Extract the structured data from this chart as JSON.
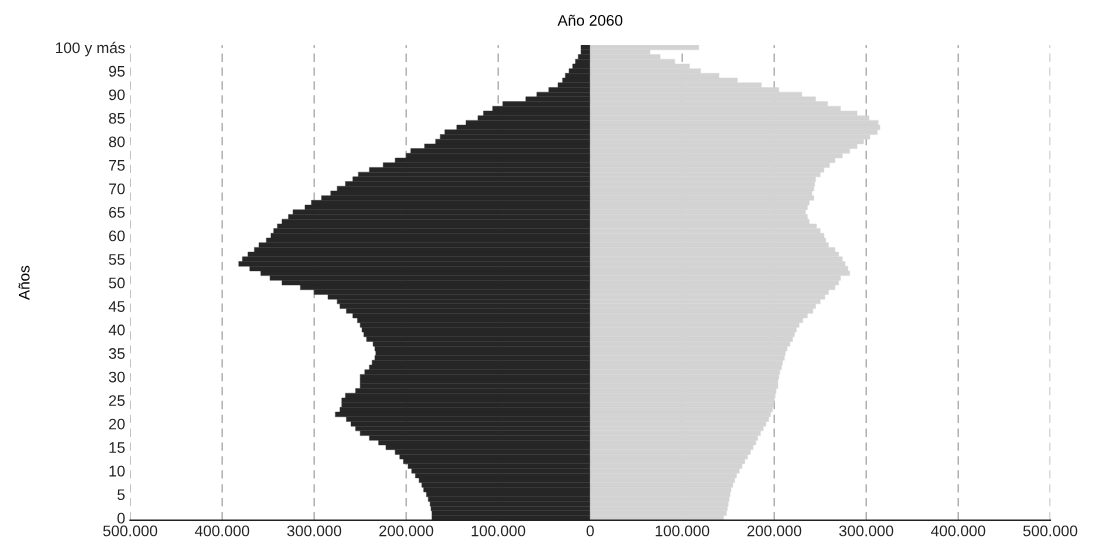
{
  "chart_data": {
    "type": "bar",
    "orientation": "horizontal",
    "title": "Año 2060",
    "ylabel": "Años",
    "categories": [
      "100 y más",
      null,
      null,
      null,
      null,
      "95",
      null,
      null,
      null,
      null,
      "90",
      null,
      null,
      null,
      null,
      "85",
      null,
      null,
      null,
      null,
      "80",
      null,
      null,
      null,
      null,
      "75",
      null,
      null,
      null,
      null,
      "70",
      null,
      null,
      null,
      null,
      "65",
      null,
      null,
      null,
      null,
      "60",
      null,
      null,
      null,
      null,
      "55",
      null,
      null,
      null,
      null,
      "50",
      null,
      null,
      null,
      null,
      "45",
      null,
      null,
      null,
      null,
      "40",
      null,
      null,
      null,
      null,
      "35",
      null,
      null,
      null,
      null,
      "30",
      null,
      null,
      null,
      null,
      "25",
      null,
      null,
      null,
      null,
      "20",
      null,
      null,
      null,
      null,
      "15",
      null,
      null,
      null,
      null,
      "10",
      null,
      null,
      null,
      null,
      "5",
      null,
      null,
      null,
      null,
      "0"
    ],
    "series": [
      {
        "color": "#262626",
        "values": [
          -10000,
          -10000,
          -13000,
          -16000,
          -19000,
          -23000,
          -27000,
          -30000,
          -35000,
          -45000,
          -58000,
          -70000,
          -95000,
          -106000,
          -116000,
          -122000,
          -135000,
          -145000,
          -158000,
          -163000,
          -168000,
          -180000,
          -195000,
          -200000,
          -212000,
          -225000,
          -240000,
          -252000,
          -258000,
          -266000,
          -275000,
          -282000,
          -292000,
          -303000,
          -310000,
          -323000,
          -328000,
          -335000,
          -340000,
          -344000,
          -347000,
          -352000,
          -360000,
          -365000,
          -372000,
          -378000,
          -382000,
          -370000,
          -358000,
          -348000,
          -335000,
          -315000,
          -300000,
          -285000,
          -275000,
          -272000,
          -265000,
          -258000,
          -253000,
          -250000,
          -248000,
          -246000,
          -243000,
          -236000,
          -234000,
          -233000,
          -234000,
          -237000,
          -240000,
          -245000,
          -250000,
          -250000,
          -250000,
          -255000,
          -266000,
          -270000,
          -270000,
          -272000,
          -277000,
          -265000,
          -260000,
          -255000,
          -250000,
          -240000,
          -230000,
          -222000,
          -212000,
          -207000,
          -203000,
          -198000,
          -194000,
          -190000,
          -186000,
          -183000,
          -181000,
          -178000,
          -176000,
          -174000,
          -173000,
          -172000,
          -172000
        ]
      },
      {
        "color": "#d3d3d3",
        "values": [
          118000,
          65000,
          76000,
          92000,
          108000,
          120000,
          140000,
          160000,
          186000,
          205000,
          230000,
          245000,
          258000,
          272000,
          290000,
          303000,
          313000,
          315000,
          312000,
          304000,
          297000,
          290000,
          282000,
          274000,
          266000,
          260000,
          254000,
          250000,
          245000,
          244000,
          243000,
          241000,
          243000,
          238000,
          236000,
          234000,
          236000,
          238000,
          246000,
          250000,
          254000,
          256000,
          259000,
          266000,
          270000,
          274000,
          277000,
          280000,
          282000,
          272000,
          270000,
          266000,
          259000,
          255000,
          250000,
          245000,
          242000,
          236000,
          231000,
          227000,
          224000,
          222000,
          220000,
          217000,
          214000,
          212000,
          211000,
          209000,
          208000,
          206000,
          205000,
          204000,
          204000,
          202000,
          201000,
          200000,
          199000,
          198000,
          196000,
          194000,
          191000,
          188000,
          185000,
          182000,
          180000,
          177000,
          174000,
          171000,
          168000,
          165000,
          162000,
          159000,
          157000,
          155000,
          153000,
          152000,
          151000,
          150000,
          149000,
          148000,
          145000
        ]
      }
    ],
    "xlim": [
      -500000,
      500000
    ],
    "xticks": [
      {
        "value": -500000,
        "label": "500.000"
      },
      {
        "value": -400000,
        "label": "400.000"
      },
      {
        "value": -300000,
        "label": "300.000"
      },
      {
        "value": -200000,
        "label": "200.000"
      },
      {
        "value": -100000,
        "label": "100.000"
      },
      0,
      {
        "value": 100000,
        "label": "100.000"
      },
      {
        "value": 200000,
        "label": "200.000"
      },
      {
        "value": 300000,
        "label": "300.000"
      },
      {
        "value": 400000,
        "label": "400.000"
      },
      {
        "value": 500000,
        "label": "500.000"
      }
    ],
    "grid": "x",
    "stacked": true
  }
}
